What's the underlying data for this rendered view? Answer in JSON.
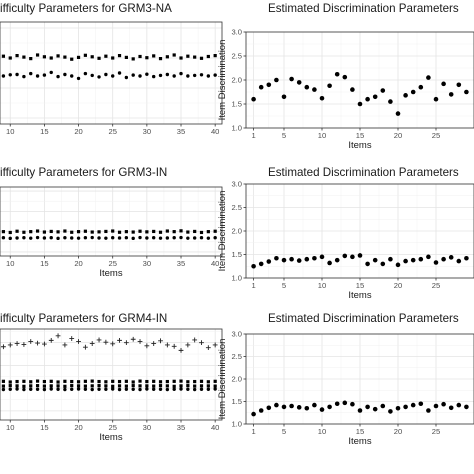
{
  "chart_data": [
    {
      "type": "scatter",
      "title": "ifficulty Parameters for GRM3-NA",
      "xlabel": "",
      "ylabel": "",
      "xlim": [
        8.5,
        41
      ],
      "ylim": [
        -2.2,
        1.2
      ],
      "x_ticks": [
        "10",
        "15",
        "20",
        "25",
        "30",
        "35",
        "40"
      ],
      "y_ticks": [],
      "grid": true,
      "series": [
        {
          "marker": "square",
          "x": [
            8,
            9,
            10,
            11,
            12,
            13,
            14,
            15,
            16,
            17,
            18,
            19,
            20,
            21,
            22,
            23,
            24,
            25,
            26,
            27,
            28,
            29,
            30,
            31,
            32,
            33,
            34,
            35,
            36,
            37,
            38,
            39,
            40
          ],
          "values": [
            0.02,
            0.06,
            0.0,
            0.08,
            0.03,
            -0.02,
            0.1,
            0.04,
            0.0,
            0.07,
            0.03,
            -0.04,
            0.02,
            0.09,
            0.04,
            -0.01,
            0.06,
            0.0,
            0.08,
            0.02,
            -0.03,
            0.05,
            0.01,
            0.07,
            -0.02,
            0.04,
            0.1,
            0.0,
            0.06,
            0.03,
            -0.01,
            0.05,
            0.08
          ]
        },
        {
          "marker": "dot",
          "x": [
            8,
            9,
            10,
            11,
            12,
            13,
            14,
            15,
            16,
            17,
            18,
            19,
            20,
            21,
            22,
            23,
            24,
            25,
            26,
            27,
            28,
            29,
            30,
            31,
            32,
            33,
            34,
            35,
            36,
            37,
            38,
            39,
            40
          ],
          "values": [
            -0.58,
            -0.6,
            -0.56,
            -0.55,
            -0.62,
            -0.52,
            -0.6,
            -0.57,
            -0.48,
            -0.62,
            -0.55,
            -0.6,
            -0.68,
            -0.52,
            -0.58,
            -0.63,
            -0.55,
            -0.6,
            -0.5,
            -0.65,
            -0.57,
            -0.6,
            -0.54,
            -0.62,
            -0.58,
            -0.55,
            -0.6,
            -0.52,
            -0.6,
            -0.58,
            -0.56,
            -0.6,
            -0.57
          ]
        }
      ]
    },
    {
      "type": "scatter",
      "title": "Estimated Discrimination Parameters",
      "xlabel": "Items",
      "ylabel": "Item Discrimination",
      "xlim": [
        0,
        30
      ],
      "ylim": [
        1.0,
        3.0
      ],
      "x_ticks": [
        "1",
        "5",
        "10",
        "15",
        "20",
        "25"
      ],
      "y_ticks": [
        "1.0",
        "1.5",
        "2.0",
        "2.5",
        "3.0"
      ],
      "grid": true,
      "series": [
        {
          "marker": "dot",
          "x": [
            1,
            2,
            3,
            4,
            5,
            6,
            7,
            8,
            9,
            10,
            11,
            12,
            13,
            14,
            15,
            16,
            17,
            18,
            19,
            20,
            21,
            22,
            23,
            24,
            25,
            26,
            27,
            28,
            29
          ],
          "values": [
            1.6,
            1.85,
            1.9,
            2.0,
            1.65,
            2.02,
            1.95,
            1.85,
            1.8,
            1.62,
            1.88,
            2.12,
            2.06,
            1.8,
            1.5,
            1.6,
            1.65,
            1.78,
            1.55,
            1.3,
            1.68,
            1.75,
            1.85,
            2.05,
            1.6,
            1.92,
            1.7,
            1.9,
            1.75
          ]
        }
      ]
    },
    {
      "type": "scatter",
      "title": "ifficulty Parameters for GRM3-IN",
      "xlabel": "Items",
      "ylabel": "",
      "xlim": [
        8.5,
        41
      ],
      "ylim": [
        -2.2,
        1.2
      ],
      "x_ticks": [
        "10",
        "15",
        "20",
        "25",
        "30",
        "35",
        "40"
      ],
      "y_ticks": [],
      "grid": true,
      "series": [
        {
          "marker": "square",
          "x": [
            8,
            9,
            10,
            11,
            12,
            13,
            14,
            15,
            16,
            17,
            18,
            19,
            20,
            21,
            22,
            23,
            24,
            25,
            26,
            27,
            28,
            29,
            30,
            31,
            32,
            33,
            34,
            35,
            36,
            37,
            38,
            39,
            40
          ],
          "values": [
            -1.02,
            -1.0,
            -1.04,
            -0.98,
            -1.03,
            -1.0,
            -0.97,
            -1.02,
            -0.99,
            -1.01,
            -0.97,
            -1.03,
            -1.0,
            -0.98,
            -1.02,
            -1.01,
            -0.99,
            -0.97,
            -1.03,
            -1.0,
            -1.02,
            -0.98,
            -1.01,
            -0.99,
            -1.03,
            -0.97,
            -1.0,
            -0.96,
            -1.02,
            -0.99,
            -1.04,
            -1.0,
            -0.98
          ]
        },
        {
          "marker": "dot",
          "x": [
            8,
            9,
            10,
            11,
            12,
            13,
            14,
            15,
            16,
            17,
            18,
            19,
            20,
            21,
            22,
            23,
            24,
            25,
            26,
            27,
            28,
            29,
            30,
            31,
            32,
            33,
            34,
            35,
            36,
            37,
            38,
            39,
            40
          ],
          "values": [
            -1.32,
            -1.3,
            -1.33,
            -1.31,
            -1.3,
            -1.32,
            -1.29,
            -1.31,
            -1.3,
            -1.33,
            -1.3,
            -1.31,
            -1.32,
            -1.3,
            -1.29,
            -1.31,
            -1.32,
            -1.3,
            -1.31,
            -1.3,
            -1.33,
            -1.29,
            -1.31,
            -1.3,
            -1.32,
            -1.31,
            -1.3,
            -1.29,
            -1.32,
            -1.31,
            -1.3,
            -1.32,
            -1.3
          ]
        }
      ]
    },
    {
      "type": "scatter",
      "title": "Estimated Discrimination Parameters",
      "xlabel": "Items",
      "ylabel": "Item Discrimination",
      "xlim": [
        0,
        30
      ],
      "ylim": [
        1.0,
        3.0
      ],
      "x_ticks": [
        "1",
        "5",
        "10",
        "15",
        "20",
        "25"
      ],
      "y_ticks": [
        "1.0",
        "1.5",
        "2.0",
        "2.5",
        "3.0"
      ],
      "grid": true,
      "series": [
        {
          "marker": "dot",
          "x": [
            1,
            2,
            3,
            4,
            5,
            6,
            7,
            8,
            9,
            10,
            11,
            12,
            13,
            14,
            15,
            16,
            17,
            18,
            19,
            20,
            21,
            22,
            23,
            24,
            25,
            26,
            27,
            28,
            29
          ],
          "values": [
            1.25,
            1.3,
            1.35,
            1.42,
            1.38,
            1.4,
            1.37,
            1.4,
            1.42,
            1.45,
            1.32,
            1.38,
            1.47,
            1.45,
            1.48,
            1.3,
            1.38,
            1.3,
            1.4,
            1.28,
            1.36,
            1.38,
            1.4,
            1.45,
            1.33,
            1.4,
            1.44,
            1.36,
            1.42
          ]
        }
      ]
    },
    {
      "type": "scatter",
      "title": "ifficulty Parameters for GRM4-IN",
      "xlabel": "Items",
      "ylabel": "",
      "xlim": [
        8.5,
        41
      ],
      "ylim": [
        -2.4,
        1.6
      ],
      "x_ticks": [
        "10",
        "15",
        "20",
        "25",
        "30",
        "35",
        "40"
      ],
      "y_ticks": [],
      "grid": true,
      "series": [
        {
          "marker": "plus",
          "x": [
            8,
            9,
            10,
            11,
            12,
            13,
            14,
            15,
            16,
            17,
            18,
            19,
            20,
            21,
            22,
            23,
            24,
            25,
            26,
            27,
            28,
            29,
            30,
            31,
            32,
            33,
            34,
            35,
            36,
            37,
            38,
            39,
            40
          ],
          "values": [
            0.88,
            0.82,
            0.9,
            0.96,
            0.92,
            1.05,
            0.98,
            0.94,
            1.1,
            1.3,
            0.9,
            1.18,
            1.05,
            0.8,
            0.96,
            1.12,
            1.02,
            0.95,
            1.1,
            1.0,
            1.15,
            1.05,
            0.86,
            0.96,
            1.08,
            0.9,
            0.84,
            0.66,
            0.9,
            1.12,
            1.0,
            0.78,
            0.9
          ]
        },
        {
          "marker": "square",
          "x": [
            8,
            9,
            10,
            11,
            12,
            13,
            14,
            15,
            16,
            17,
            18,
            19,
            20,
            21,
            22,
            23,
            24,
            25,
            26,
            27,
            28,
            29,
            30,
            31,
            32,
            33,
            34,
            35,
            36,
            37,
            38,
            39,
            40
          ],
          "values": [
            -0.72,
            -0.7,
            -0.73,
            -0.71,
            -0.7,
            -0.72,
            -0.69,
            -0.71,
            -0.7,
            -0.73,
            -0.7,
            -0.71,
            -0.72,
            -0.7,
            -0.69,
            -0.71,
            -0.72,
            -0.7,
            -0.71,
            -0.7,
            -0.73,
            -0.69,
            -0.71,
            -0.7,
            -0.72,
            -0.71,
            -0.7,
            -0.69,
            -0.72,
            -0.71,
            -0.7,
            -0.72,
            -0.7
          ]
        },
        {
          "marker": "square",
          "x": [
            8,
            9,
            10,
            11,
            12,
            13,
            14,
            15,
            16,
            17,
            18,
            19,
            20,
            21,
            22,
            23,
            24,
            25,
            26,
            27,
            28,
            29,
            30,
            31,
            32,
            33,
            34,
            35,
            36,
            37,
            38,
            39,
            40
          ],
          "values": [
            -0.9,
            -0.91,
            -0.89,
            -0.9,
            -0.92,
            -0.9,
            -0.89,
            -0.91,
            -0.9,
            -0.9,
            -0.92,
            -0.89,
            -0.9,
            -0.91,
            -0.9,
            -0.89,
            -0.9,
            -0.92,
            -0.9,
            -0.91,
            -0.89,
            -0.9,
            -0.9,
            -0.91,
            -0.89,
            -0.9,
            -0.92,
            -0.9,
            -0.89,
            -0.91,
            -0.9,
            -0.9,
            -0.91
          ]
        },
        {
          "marker": "dot",
          "x": [
            8,
            9,
            10,
            11,
            12,
            13,
            14,
            15,
            16,
            17,
            18,
            19,
            20,
            21,
            22,
            23,
            24,
            25,
            26,
            27,
            28,
            29,
            30,
            31,
            32,
            33,
            34,
            35,
            36,
            37,
            38,
            39,
            40
          ],
          "values": [
            -1.05,
            -1.06,
            -1.05,
            -1.04,
            -1.06,
            -1.05,
            -1.05,
            -1.06,
            -1.04,
            -1.05,
            -1.06,
            -1.05,
            -1.04,
            -1.05,
            -1.06,
            -1.05,
            -1.05,
            -1.04,
            -1.06,
            -1.05,
            -1.05,
            -1.06,
            -1.04,
            -1.05,
            -1.05,
            -1.06,
            -1.05,
            -1.04,
            -1.05,
            -1.06,
            -1.05,
            -1.05,
            -1.04
          ]
        }
      ]
    },
    {
      "type": "scatter",
      "title": "Estimated Discrimination Parameters",
      "xlabel": "Items",
      "ylabel": "Item Discrimination",
      "xlim": [
        0,
        30
      ],
      "ylim": [
        1.0,
        3.0
      ],
      "x_ticks": [
        "1",
        "5",
        "10",
        "15",
        "20",
        "25"
      ],
      "y_ticks": [
        "1.0",
        "1.5",
        "2.0",
        "2.5",
        "3.0"
      ],
      "grid": true,
      "series": [
        {
          "marker": "dot",
          "x": [
            1,
            2,
            3,
            4,
            5,
            6,
            7,
            8,
            9,
            10,
            11,
            12,
            13,
            14,
            15,
            16,
            17,
            18,
            19,
            20,
            21,
            22,
            23,
            24,
            25,
            26,
            27,
            28,
            29
          ],
          "values": [
            1.22,
            1.3,
            1.36,
            1.42,
            1.38,
            1.4,
            1.37,
            1.35,
            1.42,
            1.32,
            1.38,
            1.45,
            1.47,
            1.44,
            1.3,
            1.38,
            1.33,
            1.4,
            1.28,
            1.35,
            1.38,
            1.42,
            1.45,
            1.3,
            1.4,
            1.44,
            1.36,
            1.42,
            1.38
          ]
        }
      ]
    }
  ]
}
